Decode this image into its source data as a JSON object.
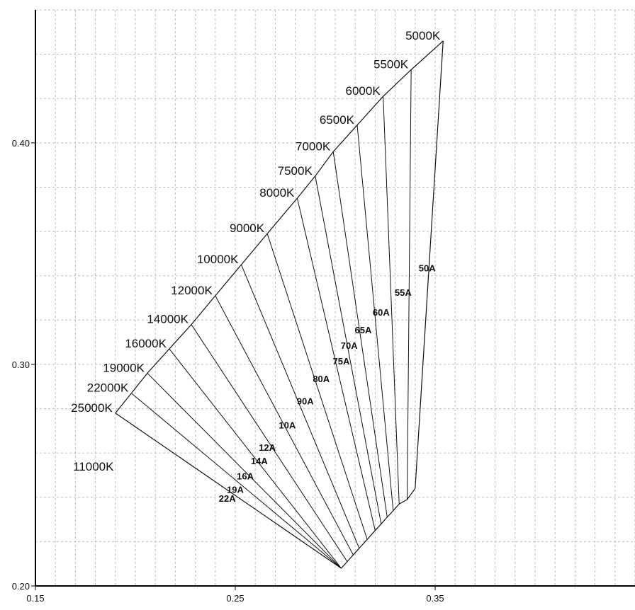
{
  "chart_data": {
    "type": "line",
    "title": "",
    "xlabel": "",
    "ylabel": "",
    "xlim": [
      0.15,
      0.45
    ],
    "ylim": [
      0.2,
      0.46
    ],
    "grid": true,
    "x_ticks": [
      {
        "value": 0.15,
        "label": "0.15"
      },
      {
        "value": 0.25,
        "label": "0.25"
      },
      {
        "value": 0.35,
        "label": "0.35"
      }
    ],
    "y_ticks": [
      {
        "value": 0.2,
        "label": "0.20"
      },
      {
        "value": 0.3,
        "label": "0.30"
      },
      {
        "value": 0.4,
        "label": "0.40"
      }
    ],
    "cct_boundary": [
      {
        "label": "5000K",
        "x": 0.354,
        "y": 0.446
      },
      {
        "label": "5500K",
        "x": 0.338,
        "y": 0.433
      },
      {
        "label": "6000K",
        "x": 0.324,
        "y": 0.421
      },
      {
        "label": "6500K",
        "x": 0.311,
        "y": 0.408
      },
      {
        "label": "7000K",
        "x": 0.299,
        "y": 0.396
      },
      {
        "label": "7500K",
        "x": 0.29,
        "y": 0.385
      },
      {
        "label": "8000K",
        "x": 0.281,
        "y": 0.375
      },
      {
        "label": "9000K",
        "x": 0.266,
        "y": 0.359
      },
      {
        "label": "10000K",
        "x": 0.253,
        "y": 0.345
      },
      {
        "label": "12000K",
        "x": 0.24,
        "y": 0.331
      },
      {
        "label": "14000K",
        "x": 0.228,
        "y": 0.318
      },
      {
        "label": "16000K",
        "x": 0.217,
        "y": 0.307
      },
      {
        "label": "19000K",
        "x": 0.206,
        "y": 0.296
      },
      {
        "label": "22000K",
        "x": 0.198,
        "y": 0.287
      },
      {
        "label": "25000K",
        "x": 0.19,
        "y": 0.278
      }
    ],
    "lower_boundary": [
      {
        "x": 0.34,
        "y": 0.244
      },
      {
        "x": 0.336,
        "y": 0.239
      },
      {
        "x": 0.332,
        "y": 0.237
      },
      {
        "x": 0.329,
        "y": 0.234
      },
      {
        "x": 0.326,
        "y": 0.231
      },
      {
        "x": 0.323,
        "y": 0.228
      },
      {
        "x": 0.32,
        "y": 0.225
      },
      {
        "x": 0.316,
        "y": 0.221
      },
      {
        "x": 0.312,
        "y": 0.217
      },
      {
        "x": 0.309,
        "y": 0.214
      },
      {
        "x": 0.306,
        "y": 0.211
      },
      {
        "x": 0.303,
        "y": 0.208
      }
    ],
    "series_labels": [
      {
        "label": "50A",
        "x": 0.346,
        "y": 0.342
      },
      {
        "label": "55A",
        "x": 0.334,
        "y": 0.331
      },
      {
        "label": "60A",
        "x": 0.323,
        "y": 0.322
      },
      {
        "label": "65A",
        "x": 0.314,
        "y": 0.314
      },
      {
        "label": "70A",
        "x": 0.307,
        "y": 0.307
      },
      {
        "label": "75A",
        "x": 0.303,
        "y": 0.3
      },
      {
        "label": "80A",
        "x": 0.293,
        "y": 0.292
      },
      {
        "label": "90A",
        "x": 0.285,
        "y": 0.282
      },
      {
        "label": "10A",
        "x": 0.276,
        "y": 0.271
      },
      {
        "label": "12A",
        "x": 0.266,
        "y": 0.261
      },
      {
        "label": "14A",
        "x": 0.262,
        "y": 0.255
      },
      {
        "label": "16A",
        "x": 0.255,
        "y": 0.248
      },
      {
        "label": "19A",
        "x": 0.25,
        "y": 0.242
      },
      {
        "label": "22A",
        "x": 0.246,
        "y": 0.238
      }
    ],
    "annotations": [
      {
        "label": "11000K",
        "x": 0.179,
        "y": 0.252
      }
    ]
  }
}
